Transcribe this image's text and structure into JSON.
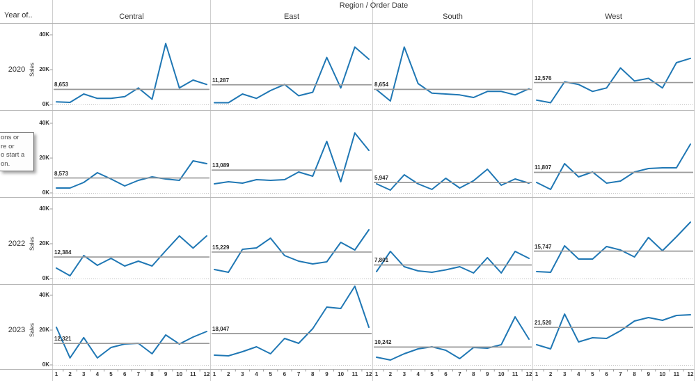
{
  "header": {
    "title": "Region  /  Order Date",
    "row_dimension_label": "Year of..",
    "columns": [
      "Central",
      "East",
      "South",
      "West"
    ]
  },
  "axis": {
    "y_label": "Sales",
    "y_tick_labels": [
      "0K",
      "20K",
      "40K"
    ],
    "month_labels": [
      "1",
      "2",
      "3",
      "4",
      "5",
      "6",
      "7",
      "8",
      "9",
      "10",
      "11",
      "12"
    ]
  },
  "overlay": {
    "lines": [
      "ons or",
      "re or",
      "o start a",
      "on."
    ]
  },
  "colors": {
    "line": "#1F77B4",
    "reference_line": "#999999",
    "zero_line": "#bbbbbb",
    "separator": "#b7b7b7",
    "column_separator": "#cfcfcf",
    "text": "#333333"
  },
  "chart_data": {
    "type": "line",
    "title": "Region / Order Date",
    "xlabel": "Order Date (month)",
    "ylabel": "Sales",
    "x": [
      1,
      2,
      3,
      4,
      5,
      6,
      7,
      8,
      9,
      10,
      11,
      12
    ],
    "ylim": [
      0,
      44000
    ],
    "y_ticks": [
      0,
      20000,
      40000
    ],
    "legend": "none",
    "grid": "zero-line dotted only",
    "rows": [
      {
        "year": "2020",
        "cells": [
          {
            "region": "Central",
            "average": 8653,
            "average_label": "8,653",
            "values": [
              1500,
              1200,
              6000,
              3500,
              3500,
              4500,
              9500,
              3000,
              35000,
              9500,
              14000,
              11500
            ]
          },
          {
            "region": "East",
            "average": 11287,
            "average_label": "11,287",
            "values": [
              1000,
              1000,
              6000,
              3500,
              8000,
              11500,
              5000,
              7000,
              27000,
              9500,
              33000,
              26000
            ]
          },
          {
            "region": "South",
            "average": 8654,
            "average_label": "8,654",
            "values": [
              8500,
              2000,
              33000,
              12000,
              6500,
              6000,
              5500,
              4000,
              7500,
              7500,
              5500,
              9000
            ]
          },
          {
            "region": "West",
            "average": 12576,
            "average_label": "12,576",
            "values": [
              2500,
              1000,
              13000,
              11500,
              7500,
              9500,
              21000,
              13500,
              15000,
              9500,
              24000,
              26500
            ]
          }
        ]
      },
      {
        "year": "",
        "cells": [
          {
            "region": "Central",
            "average": 8573,
            "average_label": "8,573",
            "values": [
              2800,
              2800,
              6000,
              11600,
              8000,
              4000,
              7200,
              9200,
              8000,
              7200,
              18400,
              16800
            ]
          },
          {
            "region": "East",
            "average": 13089,
            "average_label": "13,089",
            "values": [
              5200,
              6400,
              5600,
              7600,
              7200,
              7600,
              12000,
              9600,
              29600,
              6400,
              34400,
              24400
            ]
          },
          {
            "region": "South",
            "average": 5947,
            "average_label": "5,947",
            "values": [
              5200,
              1600,
              10400,
              5200,
              2000,
              8400,
              2800,
              7000,
              13600,
              4400,
              8000,
              5600
            ]
          },
          {
            "region": "West",
            "average": 11807,
            "average_label": "11,807",
            "values": [
              6000,
              2000,
              16800,
              9200,
              12000,
              5600,
              6800,
              12000,
              14000,
              14400,
              14400,
              28000
            ]
          }
        ]
      },
      {
        "year": "2022",
        "cells": [
          {
            "region": "Central",
            "average": 12384,
            "average_label": "12,384",
            "values": [
              6000,
              1600,
              13200,
              7600,
              11600,
              7200,
              10000,
              7200,
              16000,
              24500,
              17500,
              24500
            ]
          },
          {
            "region": "East",
            "average": 15229,
            "average_label": "15,229",
            "values": [
              5200,
              3600,
              16800,
              17600,
              23200,
              13200,
              10000,
              8400,
              9600,
              20800,
              16400,
              28000
            ]
          },
          {
            "region": "South",
            "average": 7801,
            "average_label": "7,801",
            "values": [
              4000,
              15600,
              6800,
              4400,
              3600,
              5000,
              6800,
              3200,
              12000,
              3200,
              15600,
              11600
            ]
          },
          {
            "region": "West",
            "average": 15747,
            "average_label": "15,747",
            "values": [
              4000,
              3600,
              18800,
              11200,
              11200,
              18400,
              16400,
              12400,
              23600,
              16000,
              24000,
              32400
            ]
          }
        ]
      },
      {
        "year": "2023",
        "cells": [
          {
            "region": "Central",
            "average": 12321,
            "average_label": "12,321",
            "values": [
              21600,
              4000,
              15700,
              4000,
              10000,
              12000,
              12400,
              6400,
              17200,
              12000,
              16000,
              19200
            ]
          },
          {
            "region": "East",
            "average": 18047,
            "average_label": "18,047",
            "values": [
              5600,
              5200,
              7600,
              10400,
              6400,
              15200,
              12400,
              20800,
              33200,
              32400,
              45200,
              21600
            ]
          },
          {
            "region": "South",
            "average": 10242,
            "average_label": "10,242",
            "values": [
              4400,
              2800,
              6400,
              9200,
              10400,
              8400,
              3600,
              10000,
              9600,
              11600,
              27600,
              14800
            ]
          },
          {
            "region": "West",
            "average": 21520,
            "average_label": "21,520",
            "values": [
              11600,
              9200,
              29200,
              13200,
              15600,
              15200,
              19600,
              25200,
              27200,
              25600,
              28400,
              28800
            ]
          }
        ]
      }
    ]
  }
}
